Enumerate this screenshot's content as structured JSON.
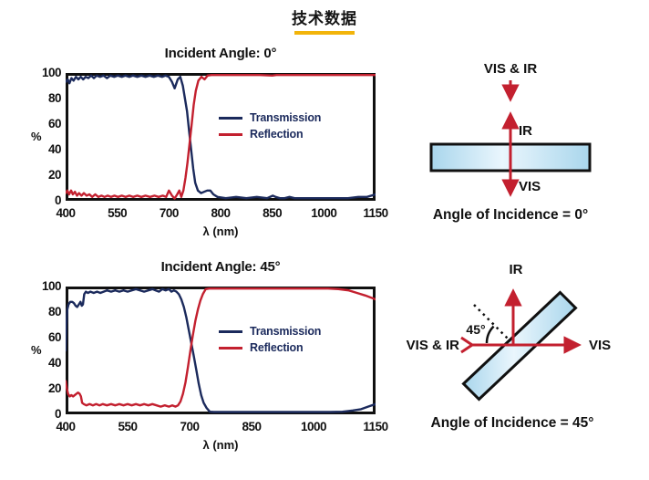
{
  "page_title": "技术数据",
  "colors": {
    "navy": "#1B2A5C",
    "red": "#C3202F",
    "accent_underline": "#F2B40A",
    "slab_fill_light": "#EAF6FD",
    "slab_fill_blue": "#A9D6EC",
    "outline": "#101010"
  },
  "chart_data": [
    {
      "type": "line",
      "title": "Incident Angle: 0°",
      "xlabel": "λ (nm)",
      "ylabel": "%",
      "ylim": [
        0,
        100
      ],
      "yticks": [
        100,
        80,
        60,
        40,
        20,
        0
      ],
      "xticks": [
        400,
        550,
        700,
        800,
        850,
        1000,
        1150
      ],
      "grid": false,
      "legend_position": "center",
      "series": [
        {
          "name": "Transmission",
          "color": "navy",
          "points": [
            [
              400,
              93
            ],
            [
              406,
              95
            ],
            [
              411,
              92
            ],
            [
              417,
              96
            ],
            [
              423,
              94
            ],
            [
              430,
              97
            ],
            [
              437,
              95
            ],
            [
              444,
              97
            ],
            [
              451,
              95
            ],
            [
              458,
              97
            ],
            [
              466,
              96
            ],
            [
              474,
              98
            ],
            [
              482,
              96
            ],
            [
              490,
              98
            ],
            [
              500,
              97
            ],
            [
              510,
              98
            ],
            [
              520,
              96
            ],
            [
              530,
              98
            ],
            [
              541,
              97
            ],
            [
              552,
              98
            ],
            [
              563,
              97
            ],
            [
              574,
              98
            ],
            [
              585,
              97
            ],
            [
              596,
              98
            ],
            [
              608,
              97
            ],
            [
              620,
              98
            ],
            [
              632,
              97
            ],
            [
              644,
              98
            ],
            [
              656,
              97
            ],
            [
              668,
              98
            ],
            [
              680,
              97
            ],
            [
              690,
              98
            ],
            [
              700,
              97
            ],
            [
              706,
              93
            ],
            [
              711,
              88
            ],
            [
              717,
              95
            ],
            [
              722,
              97
            ],
            [
              727,
              90
            ],
            [
              731,
              80
            ],
            [
              735,
              70
            ],
            [
              739,
              55
            ],
            [
              743,
              40
            ],
            [
              747,
              25
            ],
            [
              751,
              14
            ],
            [
              756,
              8
            ],
            [
              762,
              6
            ],
            [
              768,
              7
            ],
            [
              774,
              8
            ],
            [
              780,
              8
            ],
            [
              786,
              5
            ],
            [
              794,
              3
            ],
            [
              805,
              2
            ],
            [
              815,
              3
            ],
            [
              825,
              2
            ],
            [
              835,
              3
            ],
            [
              845,
              2
            ],
            [
              852,
              4
            ],
            [
              860,
              3
            ],
            [
              872,
              2
            ],
            [
              886,
              2
            ],
            [
              900,
              3
            ],
            [
              915,
              2
            ],
            [
              935,
              2
            ],
            [
              960,
              2
            ],
            [
              985,
              2
            ],
            [
              1010,
              2
            ],
            [
              1040,
              2
            ],
            [
              1070,
              2
            ],
            [
              1100,
              3
            ],
            [
              1125,
              3
            ],
            [
              1150,
              5
            ]
          ]
        },
        {
          "name": "Reflection",
          "color": "red",
          "points": [
            [
              400,
              6
            ],
            [
              405,
              8
            ],
            [
              410,
              5
            ],
            [
              416,
              8
            ],
            [
              421,
              5
            ],
            [
              427,
              7
            ],
            [
              433,
              4
            ],
            [
              439,
              6
            ],
            [
              446,
              4
            ],
            [
              453,
              6
            ],
            [
              461,
              4
            ],
            [
              469,
              5
            ],
            [
              477,
              3
            ],
            [
              486,
              5
            ],
            [
              495,
              3
            ],
            [
              504,
              4
            ],
            [
              513,
              3
            ],
            [
              522,
              4
            ],
            [
              532,
              3
            ],
            [
              542,
              4
            ],
            [
              552,
              3
            ],
            [
              563,
              4
            ],
            [
              574,
              3
            ],
            [
              585,
              4
            ],
            [
              596,
              3
            ],
            [
              608,
              4
            ],
            [
              620,
              3
            ],
            [
              632,
              4
            ],
            [
              645,
              3
            ],
            [
              658,
              4
            ],
            [
              670,
              3
            ],
            [
              682,
              4
            ],
            [
              692,
              3
            ],
            [
              700,
              8
            ],
            [
              706,
              4
            ],
            [
              711,
              1
            ],
            [
              716,
              5
            ],
            [
              720,
              8
            ],
            [
              724,
              3
            ],
            [
              728,
              8
            ],
            [
              732,
              18
            ],
            [
              736,
              30
            ],
            [
              740,
              45
            ],
            [
              744,
              60
            ],
            [
              748,
              75
            ],
            [
              752,
              86
            ],
            [
              757,
              94
            ],
            [
              763,
              97
            ],
            [
              769,
              95
            ],
            [
              775,
              98
            ],
            [
              782,
              100
            ],
            [
              790,
              99
            ],
            [
              800,
              100
            ],
            [
              812,
              99
            ],
            [
              825,
              100
            ],
            [
              838,
              99
            ],
            [
              850,
              98
            ],
            [
              862,
              100
            ],
            [
              876,
              99
            ],
            [
              890,
              100
            ],
            [
              910,
              99
            ],
            [
              930,
              100
            ],
            [
              955,
              99
            ],
            [
              980,
              100
            ],
            [
              1005,
              99
            ],
            [
              1035,
              100
            ],
            [
              1065,
              99
            ],
            [
              1095,
              100
            ],
            [
              1120,
              99
            ],
            [
              1150,
              99
            ]
          ]
        }
      ]
    },
    {
      "type": "line",
      "title": "Incident Angle: 45°",
      "xlabel": "λ (nm)",
      "ylabel": "%",
      "ylim": [
        0,
        100
      ],
      "yticks": [
        100,
        80,
        60,
        40,
        20,
        0
      ],
      "xticks": [
        400,
        550,
        700,
        850,
        1000,
        1150
      ],
      "grid": false,
      "legend_position": "center",
      "series": [
        {
          "name": "Transmission",
          "color": "navy",
          "points": [
            [
              400,
              50
            ],
            [
              402,
              70
            ],
            [
              404,
              82
            ],
            [
              407,
              86
            ],
            [
              411,
              88
            ],
            [
              416,
              88
            ],
            [
              420,
              87
            ],
            [
              424,
              85
            ],
            [
              428,
              84
            ],
            [
              432,
              86
            ],
            [
              436,
              88
            ],
            [
              439,
              85
            ],
            [
              442,
              86
            ],
            [
              445,
              94
            ],
            [
              449,
              96
            ],
            [
              454,
              95
            ],
            [
              460,
              96
            ],
            [
              468,
              95
            ],
            [
              476,
              96
            ],
            [
              484,
              95
            ],
            [
              492,
              96
            ],
            [
              500,
              97
            ],
            [
              510,
              96
            ],
            [
              520,
              97
            ],
            [
              530,
              96
            ],
            [
              540,
              97
            ],
            [
              550,
              96
            ],
            [
              560,
              97
            ],
            [
              570,
              98
            ],
            [
              580,
              97
            ],
            [
              590,
              96
            ],
            [
              600,
              97
            ],
            [
              610,
              98
            ],
            [
              618,
              97
            ],
            [
              626,
              96
            ],
            [
              634,
              98
            ],
            [
              642,
              97
            ],
            [
              650,
              98
            ],
            [
              656,
              96
            ],
            [
              662,
              97
            ],
            [
              668,
              96
            ],
            [
              674,
              94
            ],
            [
              680,
              90
            ],
            [
              686,
              84
            ],
            [
              692,
              76
            ],
            [
              698,
              66
            ],
            [
              704,
              56
            ],
            [
              710,
              46
            ],
            [
              716,
              35
            ],
            [
              722,
              24
            ],
            [
              728,
              15
            ],
            [
              734,
              9
            ],
            [
              741,
              5
            ],
            [
              749,
              2
            ],
            [
              758,
              1
            ],
            [
              770,
              0.5
            ],
            [
              790,
              0.5
            ],
            [
              820,
              0.5
            ],
            [
              860,
              0.5
            ],
            [
              900,
              0.5
            ],
            [
              950,
              0.5
            ],
            [
              1000,
              0.5
            ],
            [
              1040,
              1
            ],
            [
              1070,
              2
            ],
            [
              1095,
              3
            ],
            [
              1115,
              4
            ],
            [
              1132,
              6
            ],
            [
              1150,
              8
            ]
          ]
        },
        {
          "name": "Reflection",
          "color": "red",
          "points": [
            [
              400,
              26
            ],
            [
              403,
              20
            ],
            [
              406,
              16
            ],
            [
              410,
              14
            ],
            [
              414,
              15
            ],
            [
              418,
              14
            ],
            [
              422,
              15
            ],
            [
              426,
              16
            ],
            [
              430,
              17
            ],
            [
              434,
              16
            ],
            [
              437,
              14
            ],
            [
              440,
              9
            ],
            [
              444,
              8
            ],
            [
              450,
              7
            ],
            [
              458,
              8
            ],
            [
              466,
              7
            ],
            [
              474,
              8
            ],
            [
              482,
              7
            ],
            [
              490,
              8
            ],
            [
              500,
              7
            ],
            [
              510,
              8
            ],
            [
              520,
              7
            ],
            [
              530,
              8
            ],
            [
              540,
              7
            ],
            [
              550,
              8
            ],
            [
              560,
              7
            ],
            [
              570,
              8
            ],
            [
              580,
              7
            ],
            [
              590,
              8
            ],
            [
              600,
              7
            ],
            [
              610,
              8
            ],
            [
              620,
              7
            ],
            [
              630,
              6
            ],
            [
              640,
              7
            ],
            [
              650,
              6
            ],
            [
              658,
              7
            ],
            [
              666,
              6
            ],
            [
              672,
              7
            ],
            [
              678,
              10
            ],
            [
              684,
              16
            ],
            [
              690,
              25
            ],
            [
              696,
              37
            ],
            [
              702,
              50
            ],
            [
              708,
              62
            ],
            [
              714,
              73
            ],
            [
              720,
              82
            ],
            [
              726,
              89
            ],
            [
              732,
              94
            ],
            [
              739,
              98
            ],
            [
              747,
              100
            ],
            [
              758,
              100
            ],
            [
              775,
              100
            ],
            [
              800,
              100
            ],
            [
              830,
              100
            ],
            [
              860,
              100
            ],
            [
              890,
              100
            ],
            [
              920,
              100
            ],
            [
              950,
              100
            ],
            [
              980,
              100
            ],
            [
              1010,
              100
            ],
            [
              1035,
              99
            ],
            [
              1060,
              98
            ],
            [
              1085,
              97
            ],
            [
              1105,
              95
            ],
            [
              1125,
              93
            ],
            [
              1150,
              90
            ]
          ]
        }
      ]
    }
  ],
  "diagrams": [
    {
      "caption": "Angle of Incidence = 0°",
      "labels": {
        "incoming": "VIS & IR",
        "reflected": "IR",
        "transmitted": "VIS"
      }
    },
    {
      "caption": "Angle of Incidence = 45°",
      "labels": {
        "incoming": "VIS & IR",
        "reflected": "IR",
        "transmitted": "VIS",
        "angle": "45°"
      }
    }
  ]
}
